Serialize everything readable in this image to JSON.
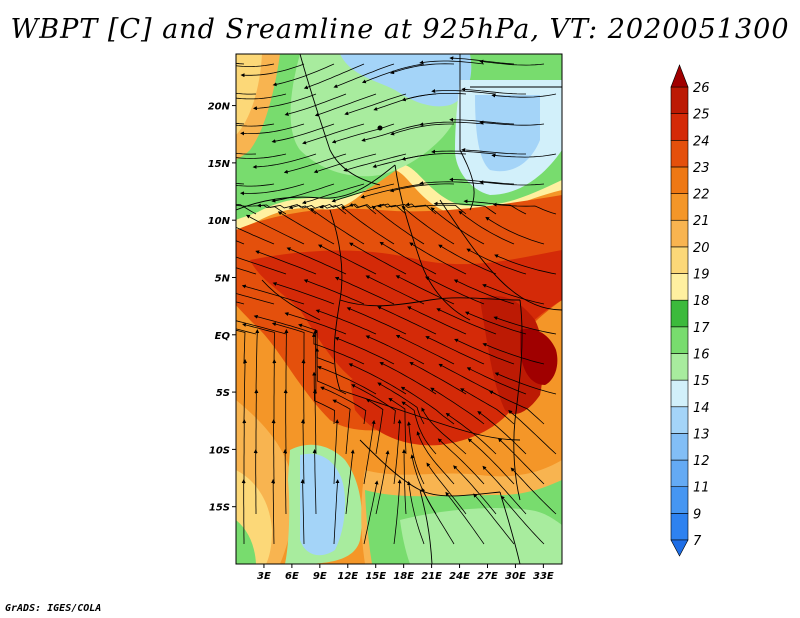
{
  "title": "WBPT [C] and Sreamline at 925hPa, VT: 2020051300",
  "credit": "GrADS: IGES/COLA",
  "map": {
    "lat_labels": [
      {
        "label": "20N",
        "lat": 20
      },
      {
        "label": "15N",
        "lat": 15
      },
      {
        "label": "10N",
        "lat": 10
      },
      {
        "label": "5N",
        "lat": 5
      },
      {
        "label": "EQ",
        "lat": 0
      },
      {
        "label": "5S",
        "lat": -5
      },
      {
        "label": "10S",
        "lat": -10
      },
      {
        "label": "15S",
        "lat": -15
      }
    ],
    "lon_labels": [
      {
        "label": "3E",
        "lon": 3
      },
      {
        "label": "6E",
        "lon": 6
      },
      {
        "label": "9E",
        "lon": 9
      },
      {
        "label": "12E",
        "lon": 12
      },
      {
        "label": "15E",
        "lon": 15
      },
      {
        "label": "18E",
        "lon": 18
      },
      {
        "label": "21E",
        "lon": 21
      },
      {
        "label": "24E",
        "lon": 24
      },
      {
        "label": "27E",
        "lon": 27
      },
      {
        "label": "30E",
        "lon": 30
      },
      {
        "label": "33E",
        "lon": 33
      }
    ],
    "lon_range": [
      0,
      35
    ],
    "lat_range": [
      -20,
      24.5
    ]
  },
  "colorbar": {
    "levels": [
      "7",
      "9",
      "11",
      "12",
      "13",
      "14",
      "15",
      "16",
      "17",
      "18",
      "19",
      "20",
      "21",
      "22",
      "23",
      "24",
      "25",
      "26"
    ],
    "colors": [
      "#1e6ee6",
      "#2e82f0",
      "#4696f2",
      "#64aaf4",
      "#82bef6",
      "#a4d4f8",
      "#d2f0fa",
      "#a8ec9e",
      "#78dc6e",
      "#3cba3c",
      "#fff0a0",
      "#fcd878",
      "#f8b450",
      "#f49628",
      "#ee7814",
      "#e4500c",
      "#d42a08",
      "#bc1a04",
      "#a00000"
    ]
  }
}
